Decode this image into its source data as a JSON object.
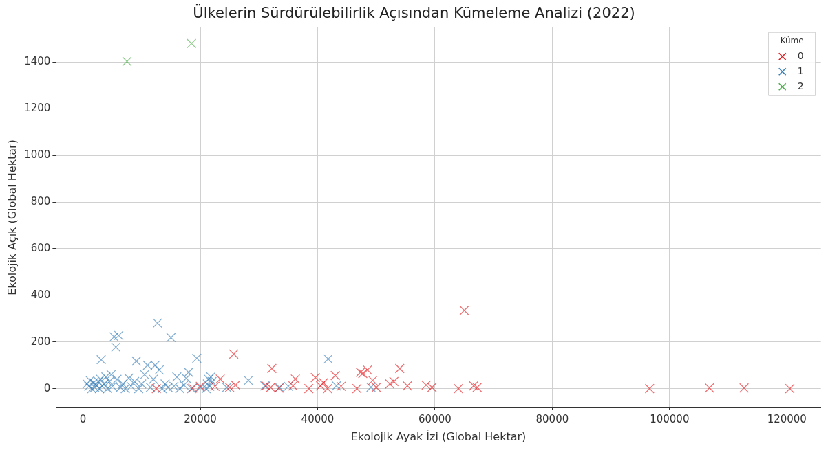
{
  "chart_data": {
    "type": "scatter",
    "title": "Ülkelerin Sürdürülebilirlik Açısından Kümeleme Analizi (2022)",
    "xlabel": "Ekolojik Ayak İzi (Global Hektar)",
    "ylabel": "Ekolojik Açık (Global Hektar)",
    "legend_title": "Küme",
    "xlim": [
      -4600,
      125800
    ],
    "ylim": [
      -83,
      1551
    ],
    "xticks": [
      0,
      20000,
      40000,
      60000,
      80000,
      100000,
      120000
    ],
    "yticks": [
      0,
      200,
      400,
      600,
      800,
      1000,
      1200,
      1400
    ],
    "grid": true,
    "legend": "top right",
    "marker": "cross",
    "series": [
      {
        "name": "0",
        "color": "#e41a1c",
        "x": [
          12500,
          18700,
          20000,
          22500,
          23400,
          25000,
          25700,
          26000,
          31200,
          32000,
          32200,
          33400,
          35800,
          36200,
          38500,
          39600,
          40500,
          41000,
          41700,
          43000,
          44000,
          46700,
          47300,
          47700,
          48500,
          49400,
          50000,
          52300,
          53000,
          54000,
          55300,
          58500,
          59500,
          64000,
          65000,
          66600,
          67200,
          96600,
          106800,
          112700,
          120500
        ],
        "values": [
          0,
          2,
          10,
          10,
          41,
          5,
          148,
          15,
          12,
          5,
          86,
          2,
          12,
          41,
          0,
          47,
          12,
          25,
          0,
          56,
          10,
          0,
          70,
          65,
          80,
          35,
          5,
          20,
          30,
          86,
          12,
          15,
          5,
          0,
          335,
          12,
          5,
          0,
          3,
          3,
          0
        ]
      },
      {
        "name": "1",
        "color": "#377eb8",
        "x": [
          700,
          1000,
          1200,
          1500,
          1800,
          2000,
          2300,
          2600,
          2800,
          3000,
          3100,
          3300,
          3600,
          3900,
          4200,
          4500,
          4800,
          5000,
          5300,
          5600,
          5800,
          6100,
          6400,
          6800,
          7200,
          7800,
          8200,
          8800,
          9100,
          9500,
          10000,
          10500,
          11000,
          11500,
          12000,
          12300,
          12700,
          13000,
          13500,
          14000,
          14500,
          15000,
          15500,
          16000,
          16500,
          17200,
          17600,
          18000,
          18500,
          19400,
          20000,
          21000,
          21200,
          21400,
          21600,
          21800,
          22000,
          24500,
          28200,
          31000,
          33500,
          35000,
          41800,
          43200,
          49100
        ],
        "values": [
          20,
          10,
          35,
          0,
          25,
          5,
          15,
          30,
          0,
          40,
          124,
          10,
          20,
          50,
          0,
          30,
          60,
          10,
          222,
          178,
          40,
          228,
          5,
          20,
          0,
          45,
          10,
          30,
          118,
          0,
          20,
          60,
          100,
          5,
          40,
          100,
          281,
          80,
          0,
          20,
          5,
          219,
          10,
          50,
          0,
          15,
          44,
          70,
          0,
          130,
          5,
          0,
          20,
          40,
          10,
          50,
          30,
          5,
          35,
          12,
          5,
          10,
          127,
          12,
          6
        ]
      },
      {
        "name": "2",
        "color": "#4daf4a",
        "x": [
          7500,
          18500
        ],
        "values": [
          1403,
          1480
        ]
      }
    ]
  }
}
